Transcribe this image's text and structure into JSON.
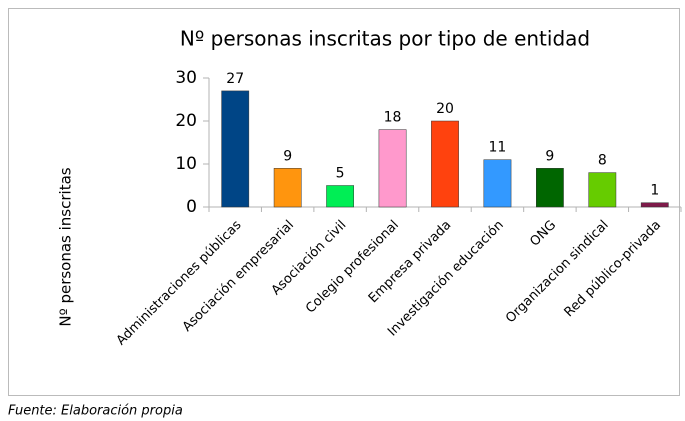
{
  "chart_data": {
    "type": "bar",
    "title": "Nº personas inscritas por tipo de entidad",
    "y_label": "Nº personas inscritas",
    "categories": [
      "Administraciones públicas",
      "Asociación empresarial",
      "Asociación civil",
      "Colegio profesional",
      "Empresa privada",
      "Investigación educación",
      "ONG",
      "Organizacion sindical",
      "Red público-privada"
    ],
    "values": [
      27,
      9,
      5,
      18,
      20,
      11,
      9,
      8,
      1
    ],
    "colors": [
      "#004586",
      "#ff950e",
      "#00ee55",
      "#ff99cc",
      "#ff420e",
      "#3399ff",
      "#006600",
      "#66cc00",
      "#7e1a4a"
    ],
    "ylim": [
      0,
      30
    ],
    "yticks": [
      0,
      10,
      20,
      30
    ],
    "grid": false,
    "source": "Fuente: Elaboración propia"
  }
}
